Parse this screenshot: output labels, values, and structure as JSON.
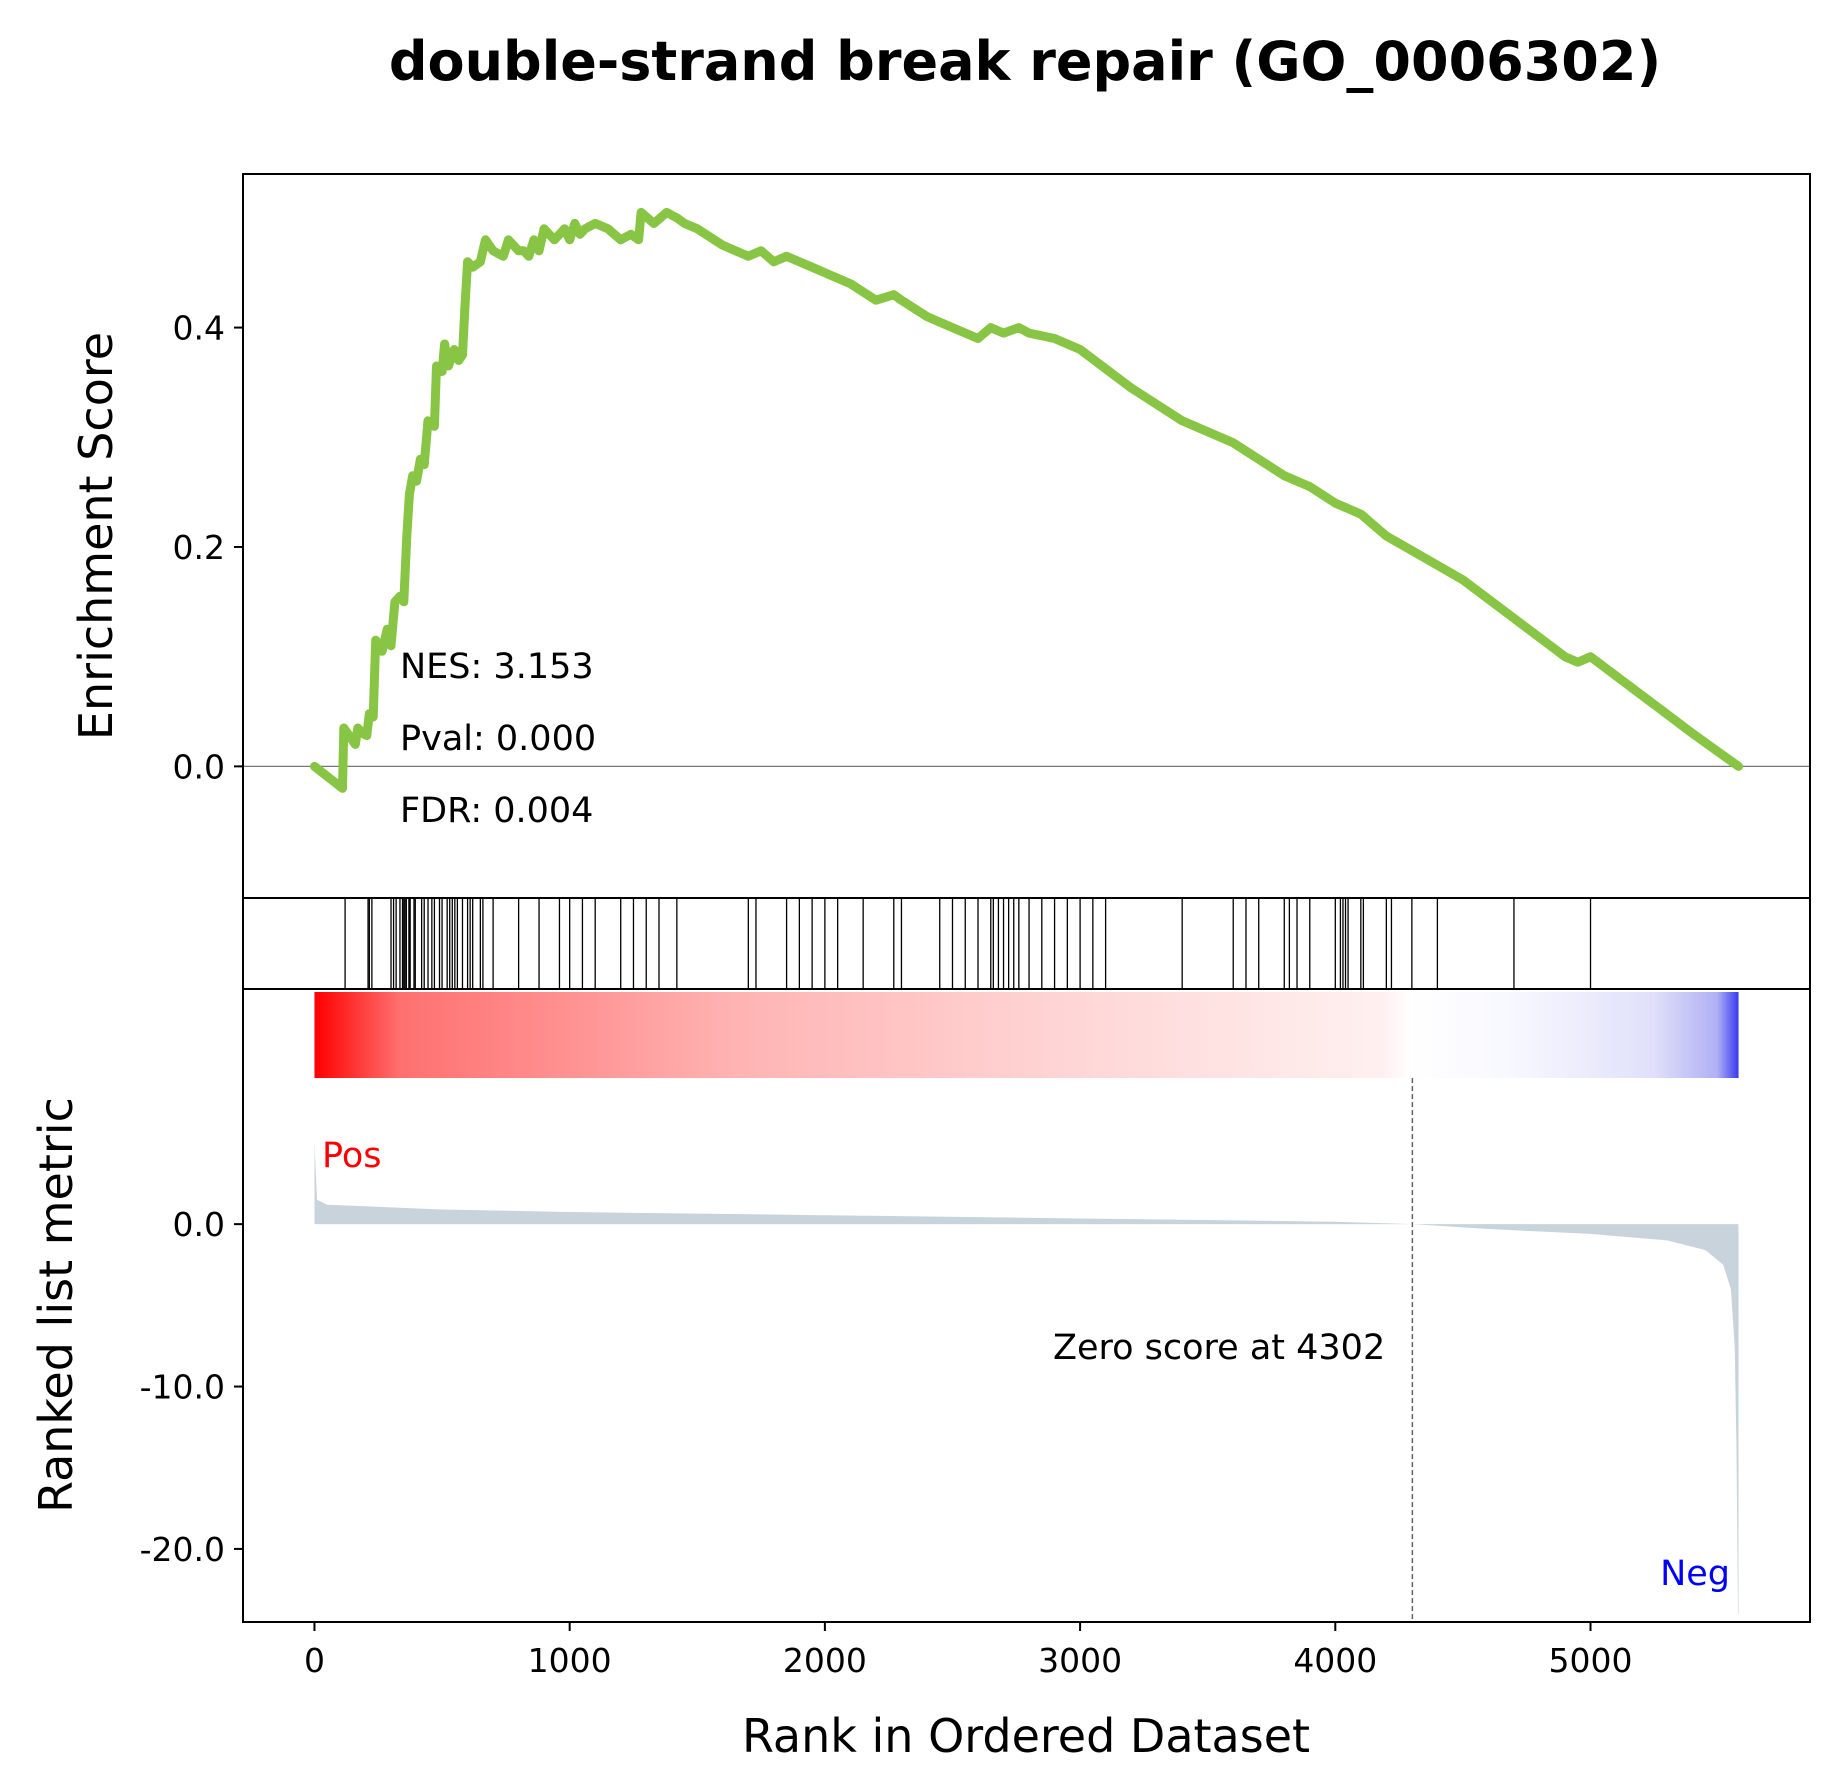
{
  "chart_data": {
    "type": "line",
    "title": "double-strand break repair (GO_0006302)",
    "xlabel": "Rank in Ordered Dataset",
    "es_ylabel": "Enrichment Score",
    "rank_ylabel": "Ranked list metric",
    "xlim": [
      -280,
      5860
    ],
    "x_ticks": [
      0,
      1000,
      2000,
      3000,
      4000,
      5000
    ],
    "es_ylim": [
      -0.12,
      0.54
    ],
    "es_ticks": [
      {
        "v": 0.0,
        "label": "0.0"
      },
      {
        "v": 0.2,
        "label": "0.2"
      },
      {
        "v": 0.4,
        "label": "0.4"
      }
    ],
    "rank_ylim": [
      -24.5,
      9
    ],
    "rank_ticks": [
      {
        "v": 0,
        "label": "0.0"
      },
      {
        "v": -10,
        "label": "-10.0"
      },
      {
        "v": -20,
        "label": "-20.0"
      }
    ],
    "line_color": "#88c544",
    "fill_color": "#c9d3dc",
    "pos_color": "#ff0000",
    "neg_color": "#0000ff",
    "es_series": {
      "name": "",
      "points": [
        [
          0,
          0
        ],
        [
          110,
          -0.02
        ],
        [
          115,
          0.035
        ],
        [
          160,
          0.02
        ],
        [
          170,
          0.035
        ],
        [
          190,
          0.03
        ],
        [
          205,
          0.028
        ],
        [
          215,
          0.048
        ],
        [
          230,
          0.045
        ],
        [
          240,
          0.115
        ],
        [
          265,
          0.105
        ],
        [
          285,
          0.125
        ],
        [
          300,
          0.11
        ],
        [
          315,
          0.15
        ],
        [
          335,
          0.155
        ],
        [
          350,
          0.15
        ],
        [
          362,
          0.21
        ],
        [
          372,
          0.248
        ],
        [
          385,
          0.265
        ],
        [
          400,
          0.26
        ],
        [
          415,
          0.28
        ],
        [
          430,
          0.275
        ],
        [
          445,
          0.315
        ],
        [
          470,
          0.31
        ],
        [
          478,
          0.365
        ],
        [
          500,
          0.36
        ],
        [
          510,
          0.385
        ],
        [
          525,
          0.365
        ],
        [
          548,
          0.38
        ],
        [
          565,
          0.37
        ],
        [
          580,
          0.375
        ],
        [
          590,
          0.42
        ],
        [
          600,
          0.46
        ],
        [
          620,
          0.455
        ],
        [
          650,
          0.46
        ],
        [
          670,
          0.48
        ],
        [
          700,
          0.47
        ],
        [
          740,
          0.465
        ],
        [
          760,
          0.48
        ],
        [
          800,
          0.47
        ],
        [
          820,
          0.47
        ],
        [
          840,
          0.465
        ],
        [
          860,
          0.48
        ],
        [
          880,
          0.47
        ],
        [
          900,
          0.49
        ],
        [
          940,
          0.48
        ],
        [
          980,
          0.49
        ],
        [
          1000,
          0.48
        ],
        [
          1020,
          0.495
        ],
        [
          1040,
          0.485
        ],
        [
          1060,
          0.49
        ],
        [
          1100,
          0.495
        ],
        [
          1150,
          0.49
        ],
        [
          1200,
          0.48
        ],
        [
          1240,
          0.485
        ],
        [
          1270,
          0.48
        ],
        [
          1280,
          0.505
        ],
        [
          1330,
          0.495
        ],
        [
          1380,
          0.505
        ],
        [
          1420,
          0.5
        ],
        [
          1450,
          0.495
        ],
        [
          1500,
          0.49
        ],
        [
          1600,
          0.475
        ],
        [
          1700,
          0.465
        ],
        [
          1750,
          0.47
        ],
        [
          1800,
          0.46
        ],
        [
          1850,
          0.465
        ],
        [
          1900,
          0.46
        ],
        [
          1950,
          0.455
        ],
        [
          2000,
          0.45
        ],
        [
          2100,
          0.44
        ],
        [
          2200,
          0.425
        ],
        [
          2270,
          0.43
        ],
        [
          2300,
          0.425
        ],
        [
          2400,
          0.41
        ],
        [
          2500,
          0.4
        ],
        [
          2600,
          0.39
        ],
        [
          2650,
          0.4
        ],
        [
          2700,
          0.395
        ],
        [
          2760,
          0.4
        ],
        [
          2800,
          0.395
        ],
        [
          2900,
          0.39
        ],
        [
          3000,
          0.38
        ],
        [
          3200,
          0.345
        ],
        [
          3400,
          0.315
        ],
        [
          3500,
          0.305
        ],
        [
          3600,
          0.295
        ],
        [
          3700,
          0.28
        ],
        [
          3800,
          0.265
        ],
        [
          3900,
          0.255
        ],
        [
          4000,
          0.24
        ],
        [
          4100,
          0.23
        ],
        [
          4200,
          0.21
        ],
        [
          4350,
          0.19
        ],
        [
          4500,
          0.17
        ],
        [
          4700,
          0.135
        ],
        [
          4900,
          0.1
        ],
        [
          4950,
          0.095
        ],
        [
          5000,
          0.1
        ],
        [
          5200,
          0.065
        ],
        [
          5400,
          0.03
        ],
        [
          5580,
          0
        ]
      ]
    },
    "hits": [
      120,
      210,
      215,
      225,
      300,
      310,
      320,
      335,
      345,
      350,
      355,
      360,
      370,
      375,
      390,
      395,
      420,
      430,
      445,
      460,
      470,
      490,
      500,
      520,
      530,
      540,
      550,
      560,
      580,
      600,
      610,
      620,
      650,
      660,
      700,
      800,
      880,
      960,
      1000,
      1050,
      1100,
      1200,
      1250,
      1300,
      1350,
      1420,
      1700,
      1730,
      1850,
      1900,
      1950,
      2000,
      2050,
      2150,
      2270,
      2300,
      2450,
      2500,
      2550,
      2600,
      2650,
      2660,
      2680,
      2700,
      2720,
      2740,
      2760,
      2800,
      2850,
      2900,
      2950,
      3000,
      3050,
      3100,
      3400,
      3600,
      3650,
      3700,
      3800,
      3820,
      3850,
      3900,
      4000,
      4020,
      4030,
      4040,
      4050,
      4100,
      4110,
      4200,
      4220,
      4300,
      4400,
      4700,
      5000
    ],
    "ranked_metric": {
      "shape": [
        [
          0,
          5.0
        ],
        [
          10,
          1.5
        ],
        [
          50,
          1.2
        ],
        [
          200,
          1.1
        ],
        [
          500,
          0.9
        ],
        [
          1000,
          0.75
        ],
        [
          2000,
          0.55
        ],
        [
          3000,
          0.35
        ],
        [
          4000,
          0.15
        ],
        [
          4302,
          0
        ],
        [
          4600,
          -0.3
        ],
        [
          5000,
          -0.6
        ],
        [
          5300,
          -1.0
        ],
        [
          5450,
          -1.6
        ],
        [
          5520,
          -2.5
        ],
        [
          5550,
          -4.0
        ],
        [
          5565,
          -7.5
        ],
        [
          5572,
          -14.0
        ],
        [
          5578,
          -24.0
        ],
        [
          5580,
          -24.0
        ]
      ]
    },
    "zero_score_rank": 4302,
    "zero_score_text": "Zero score at 4302",
    "stats": [
      "NES: 3.153",
      "Pval: 0.000",
      "FDR: 0.004"
    ],
    "pos_label": "Pos",
    "neg_label": "Neg"
  }
}
